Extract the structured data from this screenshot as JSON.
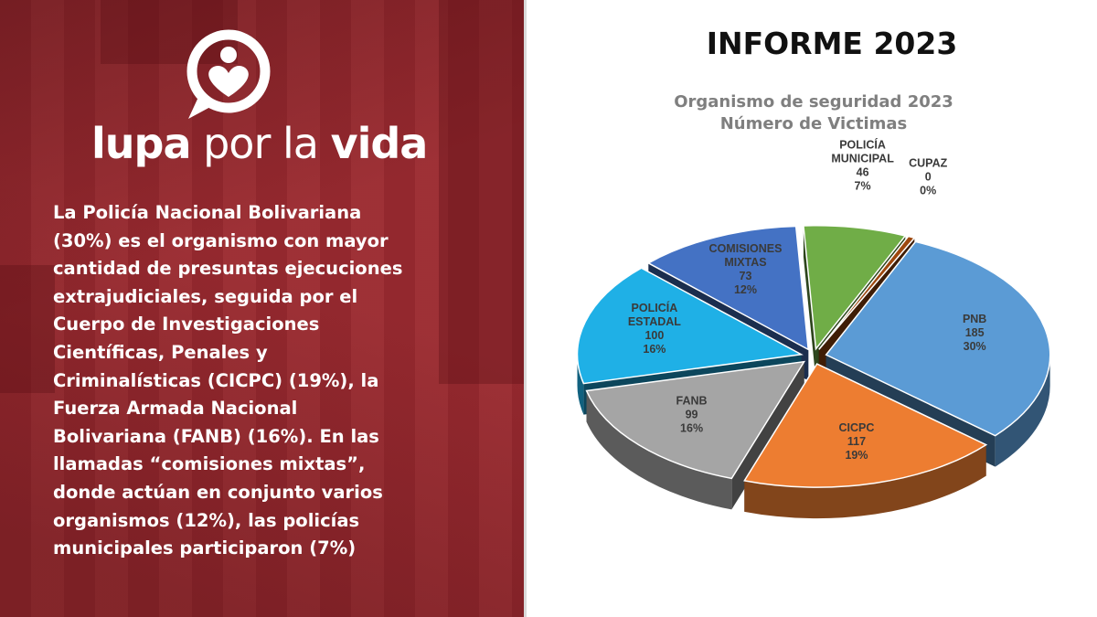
{
  "brand": {
    "name_part1": "lupa",
    "name_part2": "por la",
    "name_part3": "vida"
  },
  "description_lines": [
    "La Policía Nacional Bolivariana",
    "(30%) es el organismo con mayor",
    "cantidad de presuntas ejecuciones",
    "extrajudiciales, seguida por el",
    "Cuerpo de Investigaciones",
    "Científicas, Penales y",
    "Criminalísticas (CICPC) (19%), la",
    "Fuerza Armada Nacional",
    "Bolivariana (FANB) (16%). En las",
    "llamadas “comisiones mixtas”,",
    "donde actúan en conjunto varios",
    "organismos (12%), las policías",
    "municipales participaron (7%)"
  ],
  "report_title": "INFORME 2023",
  "colors": {
    "panel": "#9b2a30",
    "pnb": "#5b9bd5",
    "cicpc": "#ed7d31",
    "fanb": "#a5a5a5",
    "estadal": "#1fb0e6",
    "mixtas": "#4472c4",
    "municipal": "#70ad47",
    "cupaz": "#9e480e"
  },
  "chart_data": {
    "type": "pie",
    "title_lines": [
      "Organismo de seguridad 2023",
      "Número de Victimas"
    ],
    "slices": [
      {
        "label_lines": [
          "PNB"
        ],
        "value": 185,
        "percent": "30%",
        "color": "#5b9bd5"
      },
      {
        "label_lines": [
          "CICPC"
        ],
        "value": 117,
        "percent": "19%",
        "color": "#ed7d31"
      },
      {
        "label_lines": [
          "FANB"
        ],
        "value": 99,
        "percent": "16%",
        "color": "#a5a5a5"
      },
      {
        "label_lines": [
          "POLICÍA",
          "ESTADAL"
        ],
        "value": 100,
        "percent": "16%",
        "color": "#1fb0e6"
      },
      {
        "label_lines": [
          "COMISIONES",
          "MIXTAS"
        ],
        "value": 73,
        "percent": "12%",
        "color": "#4472c4"
      },
      {
        "label_lines": [
          "POLICÍA",
          "MUNICIPAL"
        ],
        "value": 46,
        "percent": "7%",
        "color": "#70ad47"
      },
      {
        "label_lines": [
          "CUPAZ"
        ],
        "value": 0,
        "percent": "0%",
        "color": "#9e480e"
      }
    ]
  }
}
